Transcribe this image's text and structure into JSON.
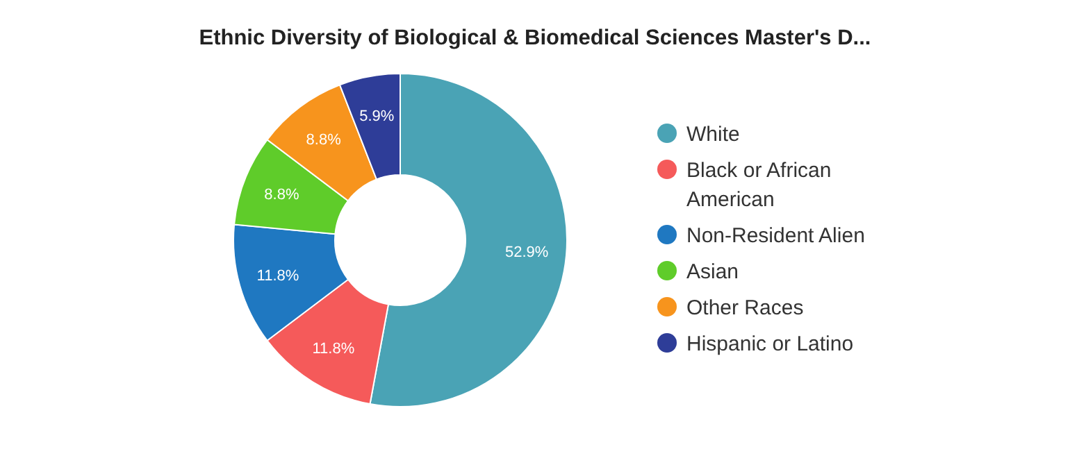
{
  "chart_data": {
    "type": "donut",
    "title": "Ethnic Diversity of Biological & Biomedical Sciences Master's D...",
    "categories": [
      "White",
      "Black or African American",
      "Non-Resident Alien",
      "Asian",
      "Other Races",
      "Hispanic or Latino"
    ],
    "values": [
      52.9,
      11.8,
      11.8,
      8.8,
      8.8,
      5.9
    ],
    "colors": [
      "#4aa3b5",
      "#f55a5a",
      "#1f78c1",
      "#5fcc2a",
      "#f7941d",
      "#2e3d98"
    ],
    "value_labels": [
      "52.9%",
      "11.8%",
      "11.8%",
      "8.8%",
      "8.8%",
      "5.9%"
    ],
    "legend": "right"
  }
}
